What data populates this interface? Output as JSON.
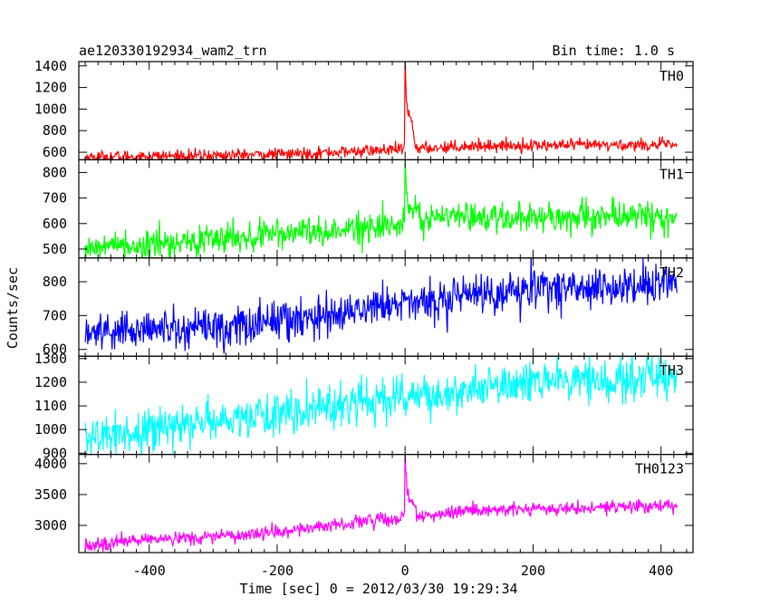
{
  "header": {
    "title": "ae120330192934_wam2_trn",
    "bin_time": "Bin time: 1.0 s"
  },
  "chart_data": {
    "type": "line",
    "xlabel": "Time [sec] 0 = 2012/03/30 19:29:34",
    "ylabel": "Counts/sec",
    "xlim": [
      -510,
      450
    ],
    "xticks": [
      -400,
      -200,
      0,
      200,
      400
    ],
    "x_range": [
      -500,
      425
    ],
    "x_step": 1,
    "panels": [
      {
        "name": "TH0",
        "color": "#ff0000",
        "ylim": [
          530,
          1440
        ],
        "yticks": [
          600,
          800,
          1000,
          1200,
          1400
        ],
        "trend": [
          [
            -500,
            555
          ],
          [
            -200,
            580
          ],
          [
            -5,
            625
          ],
          [
            100,
            660
          ],
          [
            425,
            670
          ]
        ],
        "noise": 28,
        "peak": {
          "x": 0,
          "amp": 790,
          "decay": 2.5
        },
        "secondary": [
          {
            "x": 8,
            "amp": 280,
            "width": 6
          }
        ]
      },
      {
        "name": "TH1",
        "color": "#00ff00",
        "ylim": [
          465,
          850
        ],
        "yticks": [
          500,
          600,
          700,
          800
        ],
        "trend": [
          [
            -500,
            505
          ],
          [
            -250,
            545
          ],
          [
            -5,
            595
          ],
          [
            50,
            625
          ],
          [
            425,
            630
          ]
        ],
        "noise": 30,
        "peak": {
          "x": 0,
          "amp": 240,
          "decay": 1.5
        },
        "secondary": [
          {
            "x": 10,
            "amp": 70,
            "width": 10
          }
        ]
      },
      {
        "name": "TH2",
        "color": "#0000ff",
        "ylim": [
          580,
          870
        ],
        "yticks": [
          600,
          700,
          800
        ],
        "trend": [
          [
            -500,
            650
          ],
          [
            -250,
            670
          ],
          [
            0,
            740
          ],
          [
            200,
            780
          ],
          [
            425,
            790
          ]
        ],
        "noise": 30
      },
      {
        "name": "TH3",
        "color": "#00ffff",
        "ylim": [
          895,
          1310
        ],
        "yticks": [
          900,
          1000,
          1100,
          1200,
          1300
        ],
        "trend": [
          [
            -500,
            960
          ],
          [
            -200,
            1070
          ],
          [
            0,
            1140
          ],
          [
            200,
            1200
          ],
          [
            425,
            1215
          ]
        ],
        "noise": 45
      },
      {
        "name": "TH0123",
        "color": "#ff00ff",
        "ylim": [
          2560,
          4150
        ],
        "yticks": [
          3000,
          3500,
          4000
        ],
        "trend": [
          [
            -500,
            2680
          ],
          [
            -200,
            2900
          ],
          [
            -5,
            3130
          ],
          [
            100,
            3230
          ],
          [
            425,
            3320
          ]
        ],
        "noise": 55,
        "peak": {
          "x": 0,
          "amp": 950,
          "decay": 2.5
        },
        "secondary": [
          {
            "x": 8,
            "amp": 280,
            "width": 8
          }
        ]
      }
    ]
  }
}
